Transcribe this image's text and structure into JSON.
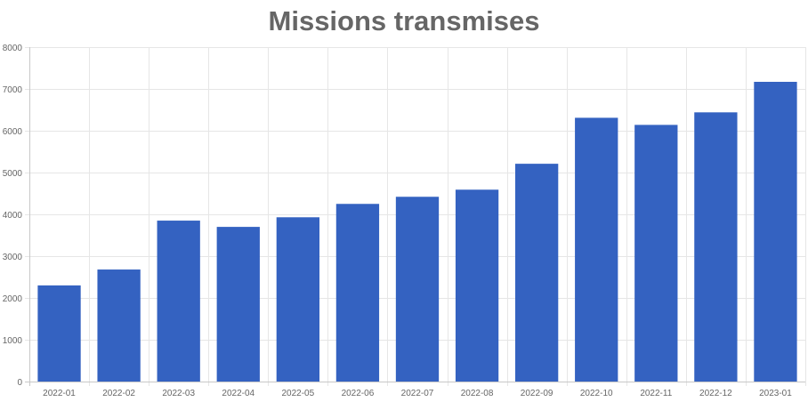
{
  "chart_data": {
    "type": "bar",
    "title": "Missions transmises",
    "xlabel": "",
    "ylabel": "",
    "categories": [
      "2022-01",
      "2022-02",
      "2022-03",
      "2022-04",
      "2022-05",
      "2022-06",
      "2022-07",
      "2022-08",
      "2022-09",
      "2022-10",
      "2022-11",
      "2022-12",
      "2023-01"
    ],
    "values": [
      2300,
      2680,
      3850,
      3700,
      3930,
      4250,
      4420,
      4590,
      5210,
      6310,
      6140,
      6440,
      7170
    ],
    "ylim": [
      0,
      8000
    ],
    "yticks": [
      0,
      1000,
      2000,
      3000,
      4000,
      5000,
      6000,
      7000,
      8000
    ],
    "grid": true,
    "legend": "none",
    "bar_color": "#3462c1",
    "grid_color": "#e6e6e6",
    "axis_color": "#c8c8c8",
    "text_color": "#666666"
  }
}
